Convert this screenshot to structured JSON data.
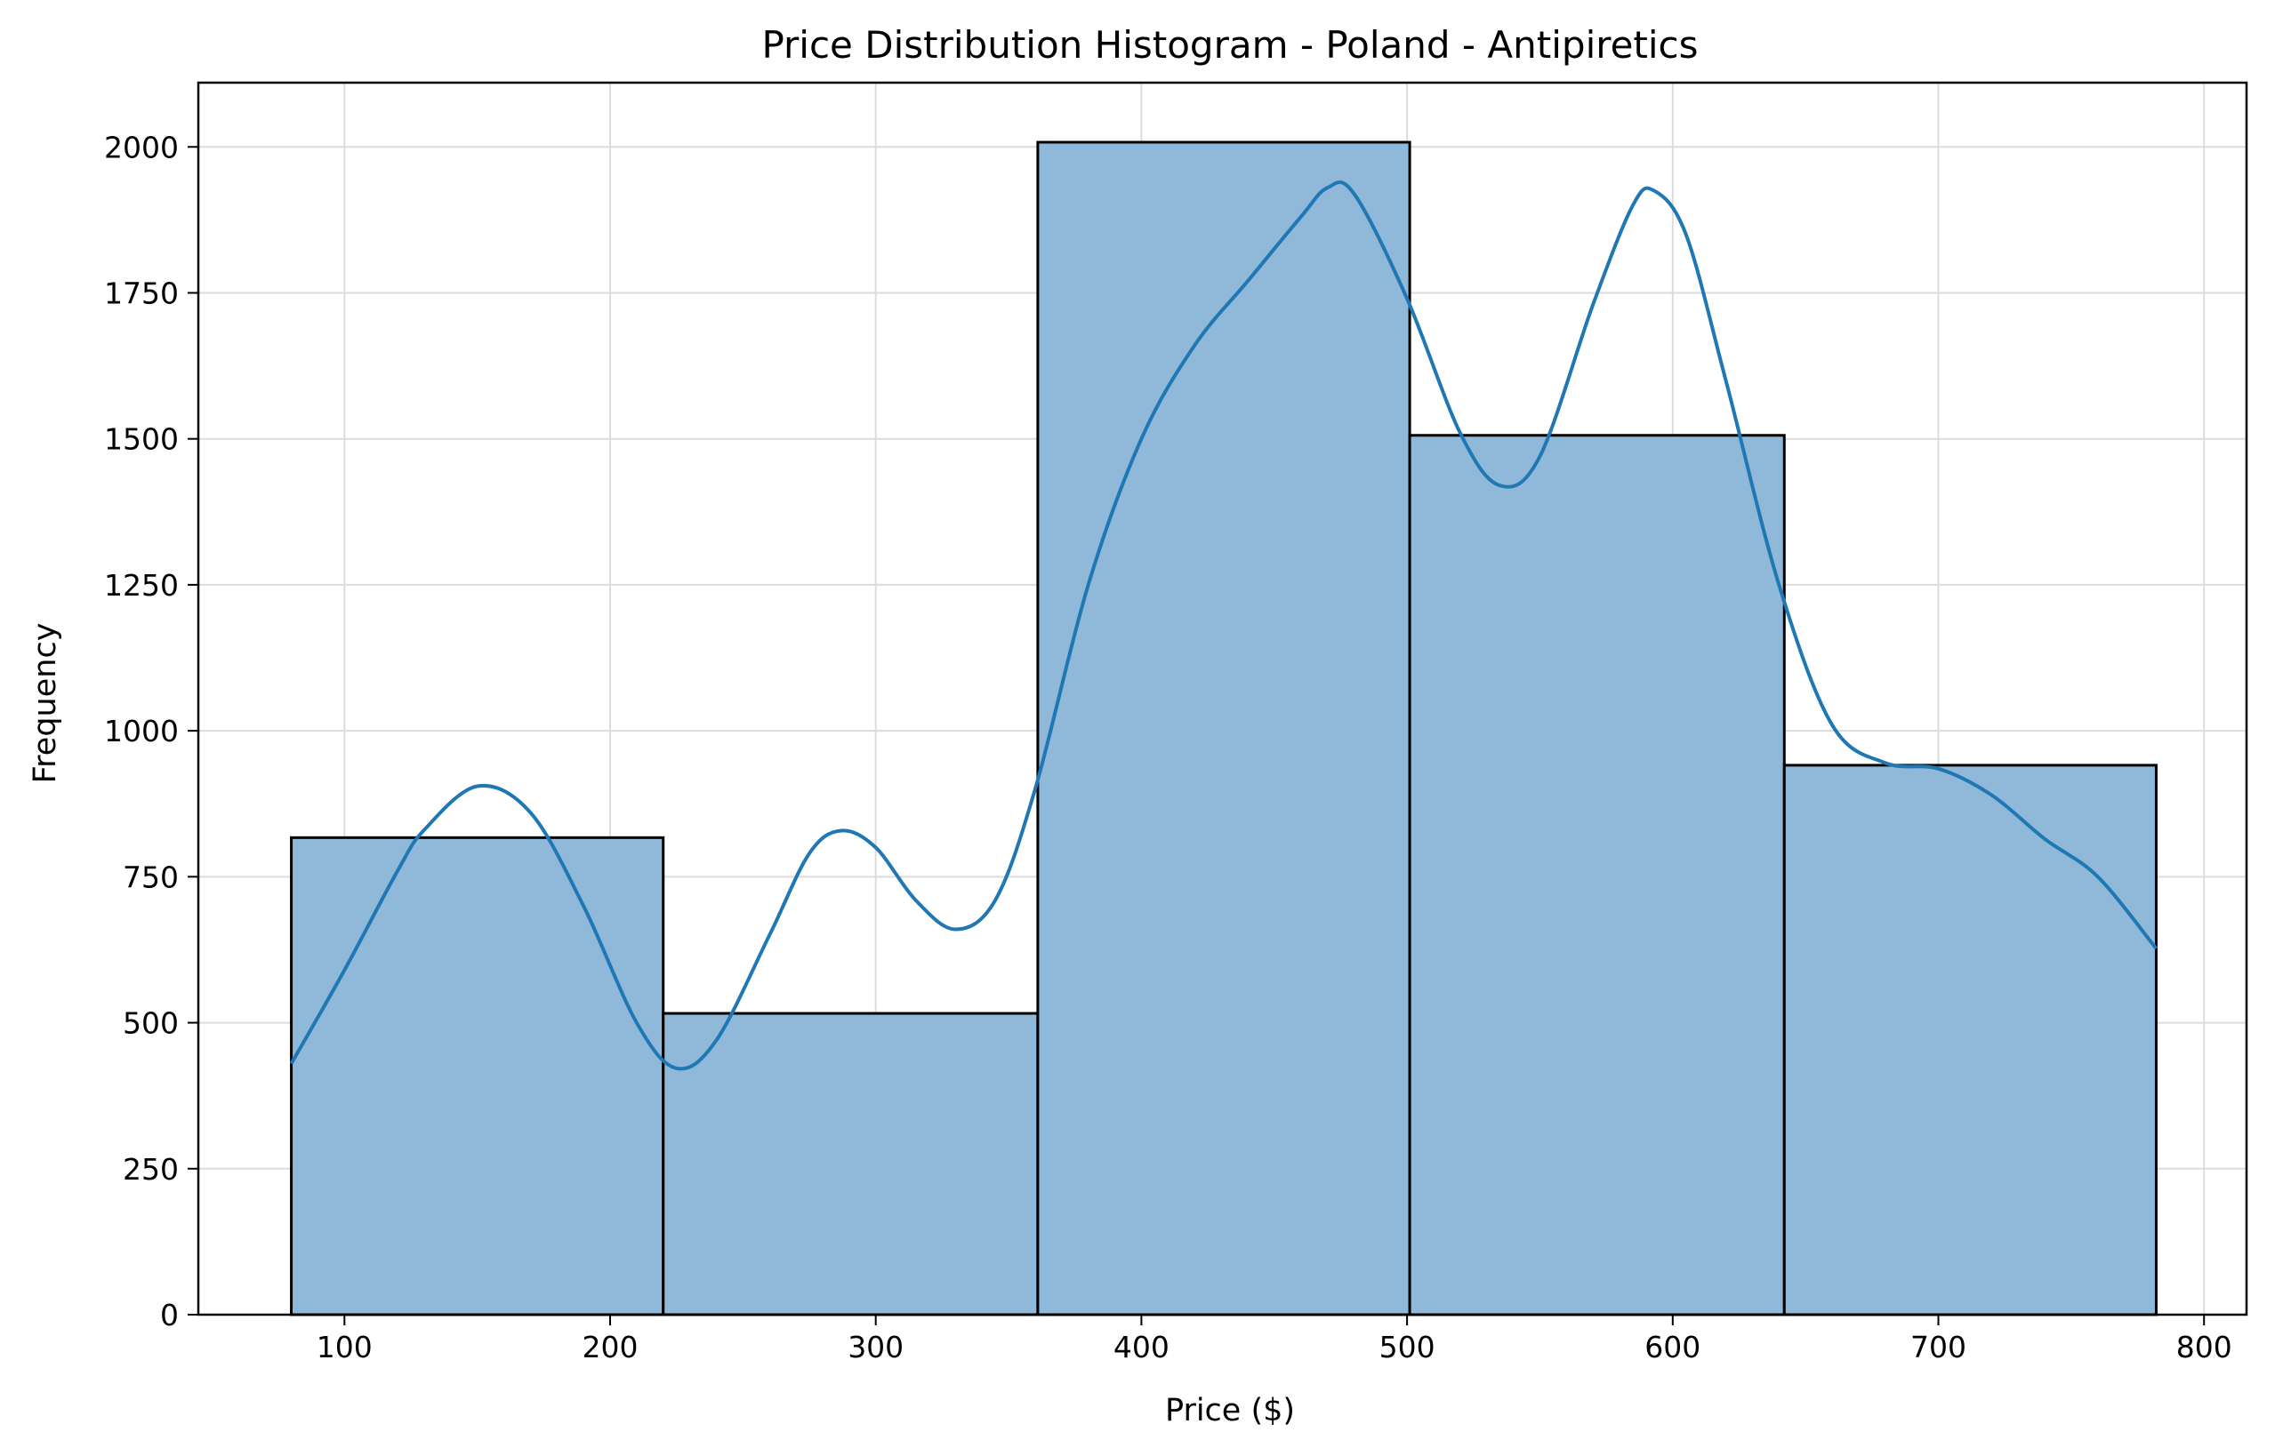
{
  "chart_data": {
    "type": "bar",
    "subtype": "histogram",
    "title": "Price Distribution Histogram - Poland - Antipiretics",
    "xlabel": "Price ($)",
    "ylabel": "Frequency",
    "xlim": [
      45,
      816
    ],
    "ylim": [
      0,
      2110
    ],
    "xticks": [
      100,
      200,
      300,
      400,
      500,
      600,
      700,
      800
    ],
    "yticks": [
      0,
      250,
      500,
      750,
      1000,
      1250,
      1500,
      1750,
      2000
    ],
    "grid": true,
    "bins": [
      {
        "x0": 80,
        "x1": 220,
        "count": 817
      },
      {
        "x0": 220,
        "x1": 361,
        "count": 516
      },
      {
        "x0": 361,
        "x1": 501,
        "count": 2008
      },
      {
        "x0": 501,
        "x1": 642,
        "count": 1506
      },
      {
        "x0": 642,
        "x1": 782,
        "count": 941
      }
    ],
    "kde": {
      "x": [
        80,
        100,
        120,
        130,
        150,
        170,
        190,
        210,
        225,
        240,
        260,
        275,
        287,
        300,
        315,
        330,
        345,
        360,
        380,
        400,
        420,
        440,
        460,
        470,
        480,
        500,
        520,
        535,
        550,
        570,
        585,
        593,
        605,
        620,
        640,
        660,
        680,
        700,
        720,
        740,
        760,
        782
      ],
      "y": [
        430,
        590,
        760,
        830,
        905,
        860,
        700,
        500,
        422,
        470,
        650,
        790,
        829,
        800,
        710,
        660,
        710,
        900,
        1250,
        1500,
        1660,
        1770,
        1880,
        1930,
        1920,
        1740,
        1510,
        1420,
        1470,
        1730,
        1900,
        1925,
        1850,
        1600,
        1250,
        1010,
        945,
        935,
        890,
        815,
        750,
        627
      ]
    },
    "colors": {
      "bar_fill": "#8fb8d9",
      "bar_edge": "#000000",
      "kde_line": "#1f77b4"
    }
  }
}
